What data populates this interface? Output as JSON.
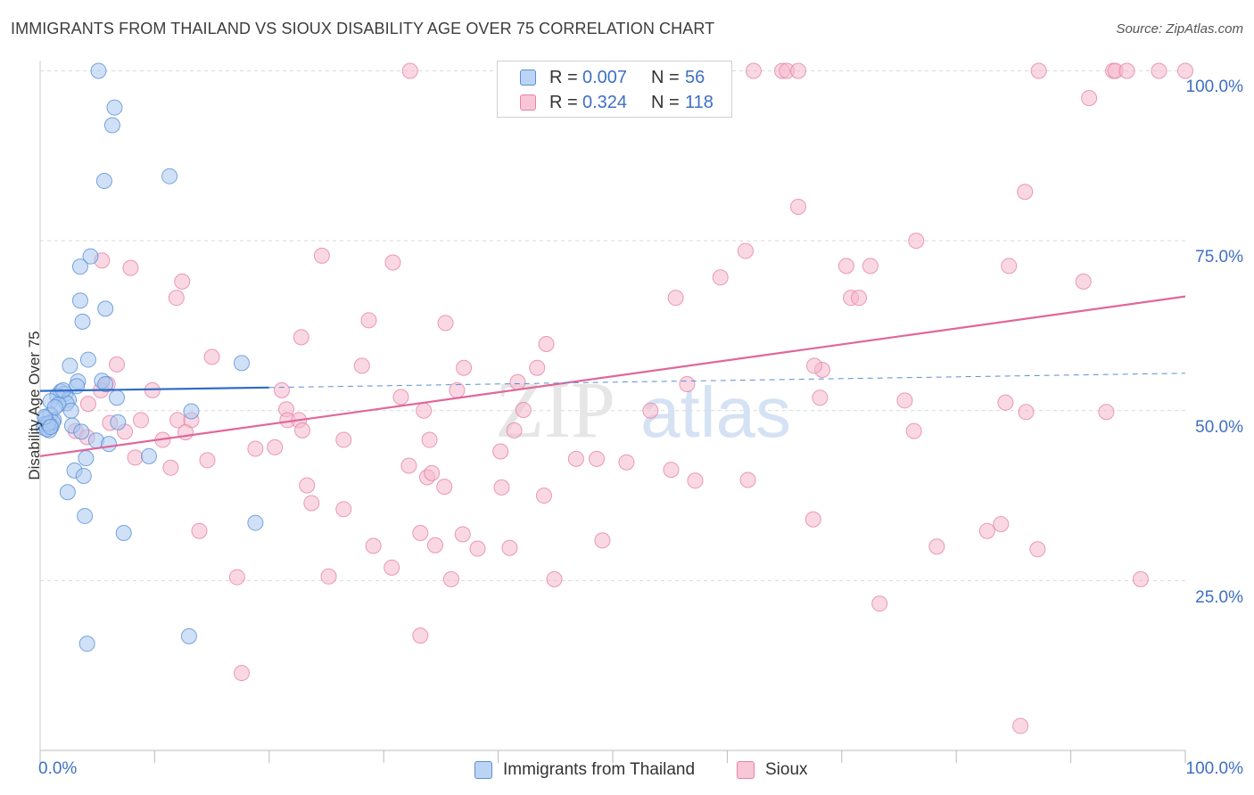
{
  "header": {
    "title": "IMMIGRANTS FROM THAILAND VS SIOUX DISABILITY AGE OVER 75 CORRELATION CHART",
    "source": "Source: ZipAtlas.com"
  },
  "watermark": {
    "part1": "ZIP",
    "part2": "atlas"
  },
  "colors": {
    "blue_fill": "#a9c8f0",
    "blue_stroke": "#5b8ed6",
    "blue_line": "#2f6cc8",
    "pink_fill": "#f6b8cc",
    "pink_stroke": "#e583a5",
    "pink_line": "#e0679a",
    "tick_text": "#3f6fc4",
    "grid": "#d9d9d9"
  },
  "legend": {
    "rows": [
      {
        "r_label": "R =",
        "r_value": "0.007",
        "n_label": "N =",
        "n_value": "56"
      },
      {
        "r_label": "R =",
        "r_value": "0.324",
        "n_label": "N =",
        "n_value": "118"
      }
    ]
  },
  "bottom_legend": {
    "items": [
      "Immigrants from Thailand",
      "Sioux"
    ]
  },
  "chart_data": {
    "type": "scatter",
    "title": "IMMIGRANTS FROM THAILAND VS SIOUX DISABILITY AGE OVER 75 CORRELATION CHART",
    "xlabel": "",
    "ylabel": "Disability Age Over 75",
    "xlim": [
      0,
      100
    ],
    "ylim": [
      0,
      103
    ],
    "x_tick_labels": [
      "0.0%",
      "100.0%"
    ],
    "y_ticks": [
      25,
      50,
      75,
      100
    ],
    "y_tick_labels": [
      "25.0%",
      "50.0%",
      "75.0%",
      "100.0%"
    ],
    "grid": "horizontal dashed",
    "legend_placement": "top-center",
    "series": [
      {
        "name": "Immigrants from Thailand",
        "r": 0.007,
        "n": 56,
        "trend": {
          "solid": [
            [
              0,
              52.9
            ],
            [
              20,
              53.4
            ]
          ],
          "dashed": [
            [
              20,
              53.4
            ],
            [
              100,
              55.5
            ]
          ]
        },
        "points": [
          [
            5.1,
            100.0
          ],
          [
            6.5,
            94.6
          ],
          [
            6.3,
            92.0
          ],
          [
            11.3,
            84.5
          ],
          [
            5.6,
            83.8
          ],
          [
            4.4,
            72.7
          ],
          [
            3.5,
            71.2
          ],
          [
            3.5,
            66.2
          ],
          [
            5.7,
            65.0
          ],
          [
            3.7,
            63.1
          ],
          [
            4.2,
            57.5
          ],
          [
            17.6,
            57.0
          ],
          [
            2.6,
            56.6
          ],
          [
            5.4,
            54.4
          ],
          [
            3.3,
            54.3
          ],
          [
            5.7,
            53.9
          ],
          [
            3.2,
            53.6
          ],
          [
            1.8,
            52.8
          ],
          [
            2.2,
            52.5
          ],
          [
            1.5,
            52.2
          ],
          [
            6.7,
            51.9
          ],
          [
            2.5,
            51.6
          ],
          [
            0.9,
            51.4
          ],
          [
            2.3,
            51.1
          ],
          [
            1.6,
            50.9
          ],
          [
            13.2,
            49.9
          ],
          [
            0.9,
            49.4
          ],
          [
            2.7,
            50.0
          ],
          [
            1.2,
            48.6
          ],
          [
            0.5,
            48.9
          ],
          [
            6.8,
            48.3
          ],
          [
            0.4,
            48.0
          ],
          [
            1.0,
            47.7
          ],
          [
            0.3,
            47.5
          ],
          [
            0.8,
            47.1
          ],
          [
            2.8,
            47.8
          ],
          [
            3.6,
            46.9
          ],
          [
            4.9,
            45.6
          ],
          [
            6.0,
            45.1
          ],
          [
            9.5,
            43.3
          ],
          [
            4.0,
            43.0
          ],
          [
            3.0,
            41.2
          ],
          [
            3.8,
            40.4
          ],
          [
            2.4,
            38.0
          ],
          [
            3.9,
            34.5
          ],
          [
            18.8,
            33.5
          ],
          [
            7.3,
            32.0
          ],
          [
            13.0,
            16.8
          ],
          [
            4.1,
            15.7
          ],
          [
            0.6,
            47.3
          ],
          [
            1.1,
            48.3
          ],
          [
            0.7,
            48.1
          ],
          [
            0.4,
            49.1
          ],
          [
            2.0,
            53.0
          ],
          [
            1.3,
            50.5
          ],
          [
            0.9,
            47.6
          ]
        ]
      },
      {
        "name": "Sioux",
        "r": 0.324,
        "n": 118,
        "trend": {
          "solid": [
            [
              0,
              43.3
            ],
            [
              100,
              66.8
            ]
          ]
        },
        "points": [
          [
            32.3,
            100.0
          ],
          [
            62.3,
            100.0
          ],
          [
            64.8,
            100.0
          ],
          [
            65.2,
            100.0
          ],
          [
            66.2,
            100.0
          ],
          [
            87.2,
            100.0
          ],
          [
            93.7,
            100.0
          ],
          [
            93.9,
            100.0
          ],
          [
            94.9,
            100.0
          ],
          [
            97.7,
            100.0
          ],
          [
            100.0,
            100.0
          ],
          [
            91.6,
            96.0
          ],
          [
            86.0,
            82.2
          ],
          [
            66.2,
            80.0
          ],
          [
            76.5,
            75.0
          ],
          [
            24.6,
            72.8
          ],
          [
            5.4,
            72.1
          ],
          [
            30.8,
            71.8
          ],
          [
            7.9,
            71.0
          ],
          [
            70.4,
            71.3
          ],
          [
            72.5,
            71.3
          ],
          [
            84.6,
            71.3
          ],
          [
            61.6,
            73.5
          ],
          [
            59.4,
            69.6
          ],
          [
            12.4,
            69.0
          ],
          [
            91.1,
            69.0
          ],
          [
            11.9,
            66.6
          ],
          [
            55.5,
            66.6
          ],
          [
            70.8,
            66.6
          ],
          [
            71.5,
            66.6
          ],
          [
            22.8,
            60.8
          ],
          [
            28.7,
            63.3
          ],
          [
            28.1,
            56.6
          ],
          [
            35.4,
            62.9
          ],
          [
            37.0,
            56.3
          ],
          [
            15.0,
            57.9
          ],
          [
            6.7,
            56.8
          ],
          [
            36.4,
            53.0
          ],
          [
            44.2,
            59.8
          ],
          [
            43.4,
            56.3
          ],
          [
            68.3,
            56.0
          ],
          [
            67.6,
            56.6
          ],
          [
            56.5,
            53.9
          ],
          [
            41.7,
            54.2
          ],
          [
            5.9,
            53.9
          ],
          [
            5.3,
            53.0
          ],
          [
            9.8,
            53.0
          ],
          [
            21.1,
            53.0
          ],
          [
            31.5,
            52.0
          ],
          [
            68.1,
            51.9
          ],
          [
            75.5,
            51.5
          ],
          [
            84.3,
            51.2
          ],
          [
            4.2,
            51.0
          ],
          [
            21.5,
            50.2
          ],
          [
            33.5,
            50.0
          ],
          [
            42.2,
            50.1
          ],
          [
            53.3,
            50.0
          ],
          [
            86.1,
            49.8
          ],
          [
            93.1,
            49.8
          ],
          [
            8.8,
            48.6
          ],
          [
            12.0,
            48.6
          ],
          [
            13.2,
            48.6
          ],
          [
            21.6,
            48.6
          ],
          [
            22.6,
            48.6
          ],
          [
            6.1,
            48.2
          ],
          [
            7.4,
            46.9
          ],
          [
            3.1,
            47.0
          ],
          [
            12.7,
            46.8
          ],
          [
            22.9,
            47.1
          ],
          [
            41.4,
            47.1
          ],
          [
            76.3,
            47.0
          ],
          [
            4.1,
            46.1
          ],
          [
            10.7,
            45.7
          ],
          [
            26.5,
            45.7
          ],
          [
            34.0,
            45.7
          ],
          [
            14.6,
            42.7
          ],
          [
            18.8,
            44.4
          ],
          [
            20.5,
            44.6
          ],
          [
            40.2,
            44.0
          ],
          [
            46.8,
            42.9
          ],
          [
            48.6,
            42.9
          ],
          [
            51.2,
            42.4
          ],
          [
            8.3,
            43.1
          ],
          [
            11.4,
            41.6
          ],
          [
            32.2,
            41.9
          ],
          [
            55.1,
            41.3
          ],
          [
            57.2,
            39.7
          ],
          [
            61.8,
            39.8
          ],
          [
            23.3,
            39.0
          ],
          [
            35.3,
            38.8
          ],
          [
            40.3,
            38.7
          ],
          [
            33.8,
            40.2
          ],
          [
            34.2,
            40.8
          ],
          [
            44.0,
            37.5
          ],
          [
            23.7,
            36.4
          ],
          [
            26.5,
            35.5
          ],
          [
            67.5,
            34.0
          ],
          [
            83.9,
            33.3
          ],
          [
            82.7,
            32.3
          ],
          [
            13.9,
            32.3
          ],
          [
            33.2,
            32.0
          ],
          [
            36.9,
            31.8
          ],
          [
            49.1,
            30.9
          ],
          [
            34.5,
            30.2
          ],
          [
            29.1,
            30.1
          ],
          [
            38.2,
            29.7
          ],
          [
            41.0,
            29.8
          ],
          [
            78.3,
            30.0
          ],
          [
            87.1,
            29.6
          ],
          [
            30.7,
            26.9
          ],
          [
            25.2,
            25.6
          ],
          [
            17.2,
            25.5
          ],
          [
            35.9,
            25.2
          ],
          [
            44.9,
            25.2
          ],
          [
            96.1,
            25.2
          ],
          [
            73.3,
            21.6
          ],
          [
            33.2,
            16.9
          ],
          [
            17.6,
            11.4
          ],
          [
            85.6,
            3.6
          ]
        ]
      }
    ]
  }
}
